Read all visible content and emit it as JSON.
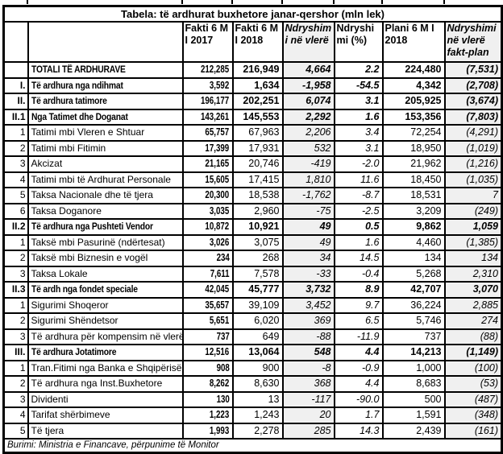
{
  "chart_data": {
    "type": "table",
    "title": "Tabela: të ardhurat buxhetore janar-qershor (mln lek)",
    "header": {
      "fakti_2017": "Fakti 6 M I 2017",
      "fakti_2018": "Fakti 6 M I 2018",
      "ndryshimi_vlere": "Ndryshimi në vlerë",
      "ndryshimi_pct": "Ndryshimi (%)",
      "plani_2018": "Plani 6 M I 2018",
      "ndryshimi_fakt_plan": "Ndryshimi në vlerë fakt-plan"
    },
    "rows": [
      {
        "num": "",
        "label": "TOTALI TË ARDHURAVE",
        "fakti_2017": "212,285",
        "fakti_2018": "216,949",
        "ndryshimi_vlere": "4,664",
        "ndryshimi_pct": "2.2",
        "plani_2018": "224,480",
        "ndryshimi_fakt_plan": "(7,531)",
        "bold": true
      },
      {
        "num": "I.",
        "label": "Të ardhura nga ndihmat",
        "fakti_2017": "3,592",
        "fakti_2018": "1,634",
        "ndryshimi_vlere": "-1,958",
        "ndryshimi_pct": "-54.5",
        "plani_2018": "4,342",
        "ndryshimi_fakt_plan": "(2,708)",
        "bold": true
      },
      {
        "num": "II.",
        "label": "Të ardhura tatimore",
        "fakti_2017": "196,177",
        "fakti_2018": "202,251",
        "ndryshimi_vlere": "6,074",
        "ndryshimi_pct": "3.1",
        "plani_2018": "205,925",
        "ndryshimi_fakt_plan": "(3,674)",
        "bold": true
      },
      {
        "num": "II.1",
        "label": "Nga Tatimet dhe Doganat",
        "fakti_2017": "143,261",
        "fakti_2018": "145,553",
        "ndryshimi_vlere": "2,292",
        "ndryshimi_pct": "1.6",
        "plani_2018": "153,356",
        "ndryshimi_fakt_plan": "(7,803)",
        "bold": true
      },
      {
        "num": "1",
        "label": "Tatimi mbi Vleren e Shtuar",
        "fakti_2017": "65,757",
        "fakti_2018": "67,963",
        "ndryshimi_vlere": "2,206",
        "ndryshimi_pct": "3.4",
        "plani_2018": "72,254",
        "ndryshimi_fakt_plan": "(4,291)",
        "bold": false
      },
      {
        "num": "2",
        "label": "Tatimi mbi Fitimin",
        "fakti_2017": "17,399",
        "fakti_2018": "17,931",
        "ndryshimi_vlere": "532",
        "ndryshimi_pct": "3.1",
        "plani_2018": "18,950",
        "ndryshimi_fakt_plan": "(1,019)",
        "bold": false
      },
      {
        "num": "3",
        "label": "Akcizat",
        "fakti_2017": "21,165",
        "fakti_2018": "20,746",
        "ndryshimi_vlere": "-419",
        "ndryshimi_pct": "-2.0",
        "plani_2018": "21,962",
        "ndryshimi_fakt_plan": "(1,216)",
        "bold": false
      },
      {
        "num": "4",
        "label": "Tatimi mbi të Ardhurat Personale",
        "fakti_2017": "15,605",
        "fakti_2018": "17,415",
        "ndryshimi_vlere": "1,810",
        "ndryshimi_pct": "11.6",
        "plani_2018": "18,450",
        "ndryshimi_fakt_plan": "(1,035)",
        "bold": false
      },
      {
        "num": "5",
        "label": "Taksa Nacionale dhe të tjera",
        "fakti_2017": "20,300",
        "fakti_2018": "18,538",
        "ndryshimi_vlere": "-1,762",
        "ndryshimi_pct": "-8.7",
        "plani_2018": "18,531",
        "ndryshimi_fakt_plan": "7",
        "bold": false
      },
      {
        "num": "6",
        "label": "Taksa Doganore",
        "fakti_2017": "3,035",
        "fakti_2018": "2,960",
        "ndryshimi_vlere": "-75",
        "ndryshimi_pct": "-2.5",
        "plani_2018": "3,209",
        "ndryshimi_fakt_plan": "(249)",
        "bold": false
      },
      {
        "num": "II.2",
        "label": "Të ardhura nga Pushteti Vendor",
        "fakti_2017": "10,872",
        "fakti_2018": "10,921",
        "ndryshimi_vlere": "49",
        "ndryshimi_pct": "0.5",
        "plani_2018": "9,862",
        "ndryshimi_fakt_plan": "1,059",
        "bold": true
      },
      {
        "num": "1",
        "label": "Taksë mbi Pasurinë (ndërtesat)",
        "fakti_2017": "3,026",
        "fakti_2018": "3,075",
        "ndryshimi_vlere": "49",
        "ndryshimi_pct": "1.6",
        "plani_2018": "4,460",
        "ndryshimi_fakt_plan": "(1,385)",
        "bold": false
      },
      {
        "num": "2",
        "label": "Taksë mbi Biznesin e vogël",
        "fakti_2017": "234",
        "fakti_2018": "268",
        "ndryshimi_vlere": "34",
        "ndryshimi_pct": "14.5",
        "plani_2018": "134",
        "ndryshimi_fakt_plan": "134",
        "bold": false
      },
      {
        "num": "3",
        "label": "Taksa Lokale",
        "fakti_2017": "7,611",
        "fakti_2018": "7,578",
        "ndryshimi_vlere": "-33",
        "ndryshimi_pct": "-0.4",
        "plani_2018": "5,268",
        "ndryshimi_fakt_plan": "2,310",
        "bold": false
      },
      {
        "num": "II.3",
        "label": "Të ardh nga fondet speciale",
        "fakti_2017": "42,045",
        "fakti_2018": "45,777",
        "ndryshimi_vlere": "3,732",
        "ndryshimi_pct": "8.9",
        "plani_2018": "42,707",
        "ndryshimi_fakt_plan": "3,070",
        "bold": true
      },
      {
        "num": "1",
        "label": "Sigurimi Shoqeror",
        "fakti_2017": "35,657",
        "fakti_2018": "39,109",
        "ndryshimi_vlere": "3,452",
        "ndryshimi_pct": "9.7",
        "plani_2018": "36,224",
        "ndryshimi_fakt_plan": "2,885",
        "bold": false
      },
      {
        "num": "2",
        "label": "Sigurimi Shëndetsor",
        "fakti_2017": "5,651",
        "fakti_2018": "6,020",
        "ndryshimi_vlere": "369",
        "ndryshimi_pct": "6.5",
        "plani_2018": "5,746",
        "ndryshimi_fakt_plan": "274",
        "bold": false
      },
      {
        "num": "3",
        "label": "Të ardhura për kompensim në vlerë të pr",
        "fakti_2017": "737",
        "fakti_2018": "649",
        "ndryshimi_vlere": "-88",
        "ndryshimi_pct": "-11.9",
        "plani_2018": "737",
        "ndryshimi_fakt_plan": "(88)",
        "bold": false
      },
      {
        "num": "III.",
        "label": "Të ardhura Jotatimore",
        "fakti_2017": "12,516",
        "fakti_2018": "13,064",
        "ndryshimi_vlere": "548",
        "ndryshimi_pct": "4.4",
        "plani_2018": "14,213",
        "ndryshimi_fakt_plan": "(1,149)",
        "bold": true
      },
      {
        "num": "1",
        "label": "Tran.Fitimi nga Banka e Shqipërisë",
        "fakti_2017": "908",
        "fakti_2018": "900",
        "ndryshimi_vlere": "-8",
        "ndryshimi_pct": "-0.9",
        "plani_2018": "1,000",
        "ndryshimi_fakt_plan": "(100)",
        "bold": false
      },
      {
        "num": "2",
        "label": "Të ardhura nga Inst.Buxhetore",
        "fakti_2017": "8,262",
        "fakti_2018": "8,630",
        "ndryshimi_vlere": "368",
        "ndryshimi_pct": "4.4",
        "plani_2018": "8,683",
        "ndryshimi_fakt_plan": "(53)",
        "bold": false
      },
      {
        "num": "3",
        "label": "Dividenti",
        "fakti_2017": "130",
        "fakti_2018": "13",
        "ndryshimi_vlere": "-117",
        "ndryshimi_pct": "-90.0",
        "plani_2018": "500",
        "ndryshimi_fakt_plan": "(487)",
        "bold": false
      },
      {
        "num": "4",
        "label": "Tarifat shërbimeve",
        "fakti_2017": "1,223",
        "fakti_2018": "1,243",
        "ndryshimi_vlere": "20",
        "ndryshimi_pct": "1.7",
        "plani_2018": "1,591",
        "ndryshimi_fakt_plan": "(348)",
        "bold": false
      },
      {
        "num": "5",
        "label": "Të tjera",
        "fakti_2017": "1,993",
        "fakti_2018": "2,278",
        "ndryshimi_vlere": "285",
        "ndryshimi_pct": "14.3",
        "plani_2018": "2,439",
        "ndryshimi_fakt_plan": "(161)",
        "bold": false
      }
    ],
    "source": "Burimi: Ministria e Financave, përpunime të Monitor"
  },
  "colors": {
    "background": "#ffffff",
    "border": "#000000",
    "text": "#000000",
    "shaded_column_bg": "#f0f0f0"
  }
}
